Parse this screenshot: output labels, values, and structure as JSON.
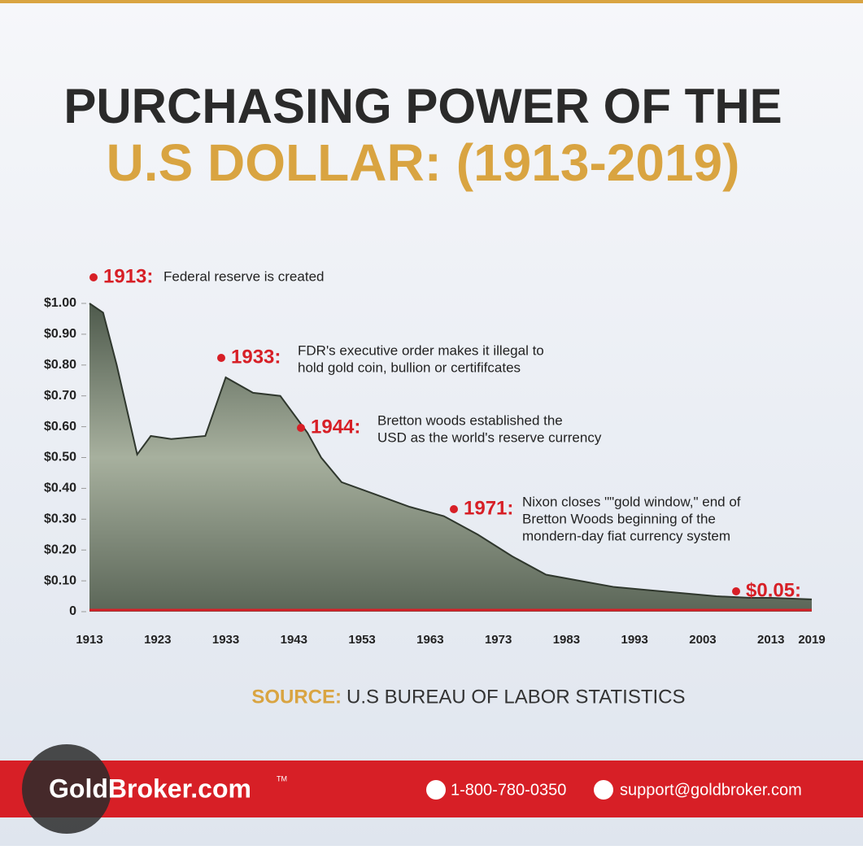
{
  "chart_data": {
    "type": "area",
    "title": "PURCHASING POWER OF THE",
    "subtitle": "U.S DOLLAR: (1913-2019)",
    "x": [
      1913,
      1915,
      1917,
      1920,
      1922,
      1925,
      1930,
      1933,
      1937,
      1941,
      1945,
      1947,
      1950,
      1955,
      1960,
      1965,
      1970,
      1975,
      1980,
      1985,
      1990,
      1995,
      2000,
      2005,
      2010,
      2013,
      2019
    ],
    "values": [
      1.0,
      0.97,
      0.8,
      0.51,
      0.57,
      0.56,
      0.57,
      0.76,
      0.71,
      0.7,
      0.58,
      0.5,
      0.42,
      0.38,
      0.34,
      0.31,
      0.25,
      0.18,
      0.12,
      0.1,
      0.08,
      0.07,
      0.06,
      0.05,
      0.045,
      0.045,
      0.04
    ],
    "color": "#7d8c78",
    "xlim": [
      1913,
      2019
    ],
    "xticks": [
      1913,
      1923,
      1933,
      1943,
      1953,
      1963,
      1973,
      1983,
      1993,
      2003,
      2013,
      2019
    ],
    "ylim": [
      0,
      1
    ],
    "yticks": [
      0,
      {
        "value": 0.1,
        "label": "$0.10"
      },
      {
        "value": 0.2,
        "label": "$0.20"
      },
      {
        "value": 0.3,
        "label": "$0.30"
      },
      {
        "value": 0.4,
        "label": "$0.40"
      },
      {
        "value": 0.5,
        "label": "$0.50"
      },
      {
        "value": 0.6,
        "label": "$0.60"
      },
      {
        "value": 0.7,
        "label": "$0.70"
      },
      {
        "value": 0.8,
        "label": "$0.80"
      },
      {
        "value": 0.9,
        "label": "$0.90"
      },
      {
        "value": 1,
        "label": "$1.00"
      }
    ],
    "annotations": [
      {
        "label": "1913:",
        "text": [
          "Federal reserve is created"
        ]
      },
      {
        "label": "1933:",
        "text": [
          "FDR's executive order makes it illegal to",
          "hold gold coin, bullion or certififcates"
        ]
      },
      {
        "label": "1944:",
        "text": [
          "Bretton woods established the",
          "USD as the world's reserve currency"
        ]
      },
      {
        "label": "1971:",
        "text": [
          "Nixon closes \"\"gold window,\" end of",
          "Bretton Woods beginning of the",
          "mondern-day fiat currency system"
        ]
      },
      {
        "label": "$0.05:",
        "text": []
      }
    ],
    "source_label": "SOURCE:",
    "source": "U.S BUREAU OF LABOR STATISTICS"
  },
  "footer": {
    "brand": "GoldBroker.com",
    "trademark": "TM",
    "phone": "1-800-780-0350",
    "email": "support@goldbroker.com"
  }
}
